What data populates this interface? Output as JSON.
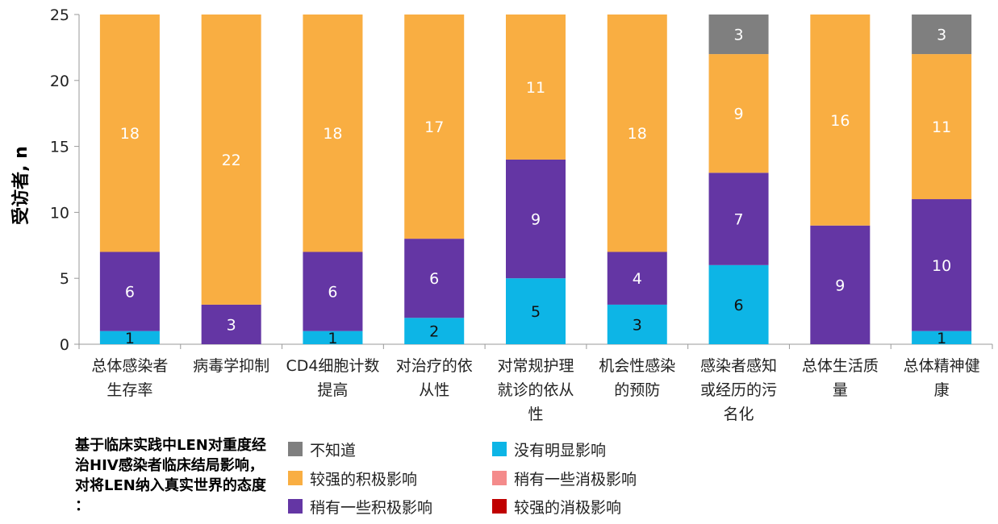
{
  "chart_data": {
    "type": "bar",
    "stacked": true,
    "ylabel": "受访者, n",
    "ylim": [
      0,
      25
    ],
    "yticks": [
      0,
      5,
      10,
      15,
      20,
      25
    ],
    "categories": [
      [
        "总体感染者",
        "生存率"
      ],
      [
        "病毒学抑制"
      ],
      [
        "CD4细胞计数",
        "提高"
      ],
      [
        "对治疗的依",
        "从性"
      ],
      [
        "对常规护理",
        "就诊的依从",
        "性"
      ],
      [
        "机会性感染",
        "的预防"
      ],
      [
        "感染者感知",
        "或经历的污",
        "名化"
      ],
      [
        "总体生活质",
        "量"
      ],
      [
        "总体精神健",
        "康"
      ]
    ],
    "series": [
      {
        "name": "没有明显影响",
        "color": "#0DB5E6",
        "label_color": "#111111",
        "values": [
          1,
          0,
          1,
          2,
          5,
          3,
          6,
          0,
          1
        ]
      },
      {
        "name": "稍有一些积极影响",
        "color": "#6436A4",
        "label_color": "#ffffff",
        "values": [
          6,
          3,
          6,
          6,
          9,
          4,
          7,
          9,
          10
        ]
      },
      {
        "name": "较强的积极影响",
        "color": "#F9AE42",
        "label_color": "#ffffff",
        "values": [
          18,
          22,
          18,
          17,
          11,
          18,
          9,
          16,
          11
        ]
      },
      {
        "name": "不知道",
        "color": "#7F7F7F",
        "label_color": "#ffffff",
        "values": [
          0,
          0,
          0,
          0,
          0,
          0,
          3,
          0,
          3
        ]
      }
    ],
    "legend": {
      "title": "基于临床实践中LEN对重度经治HIV感染者临床结局影响，对将LEN纳入真实世界的态度 ：",
      "items": [
        {
          "name": "不知道",
          "color": "#7F7F7F"
        },
        {
          "name": "较强的积极影响",
          "color": "#F9AE42"
        },
        {
          "name": "稍有一些积极影响",
          "color": "#6436A4"
        },
        {
          "name": "没有明显影响",
          "color": "#0DB5E6"
        },
        {
          "name": "稍有一些消极影响",
          "color": "#F48B8B"
        },
        {
          "name": "较强的消极影响",
          "color": "#C00000"
        }
      ],
      "placement": "bottom"
    }
  }
}
